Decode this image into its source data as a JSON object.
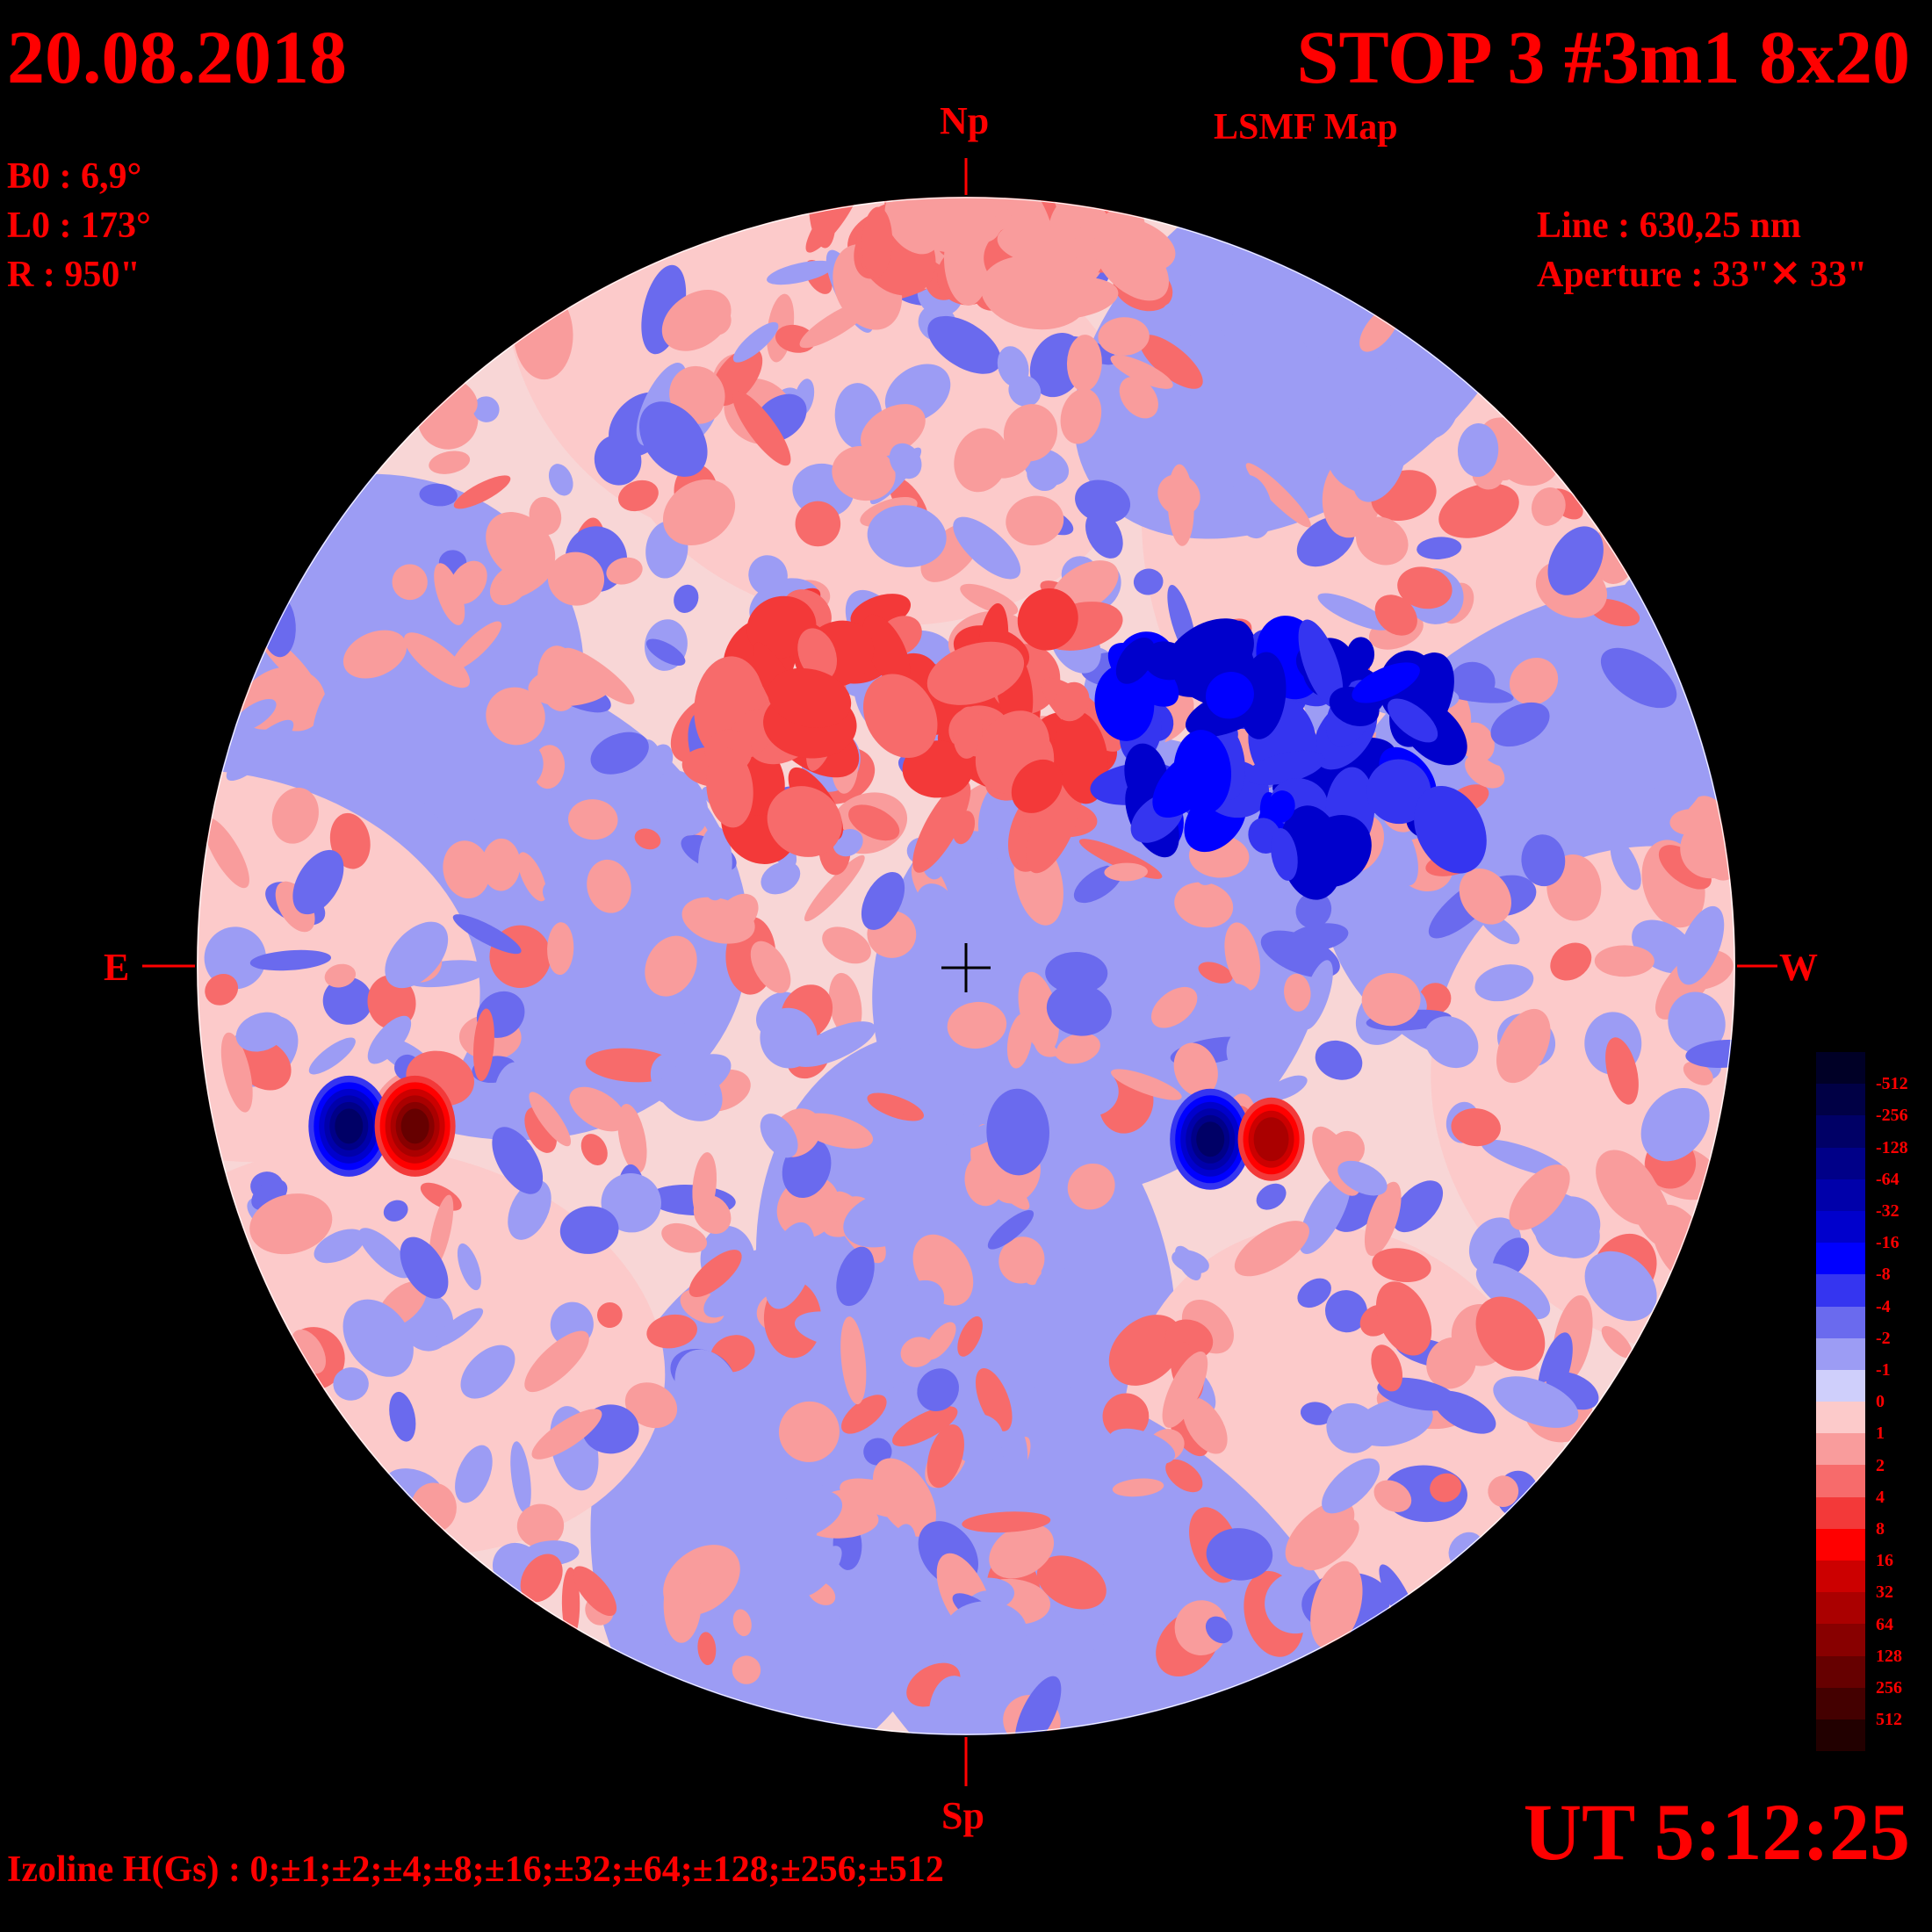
{
  "header": {
    "date": "20.08.2018",
    "title": "STOP 3 #3m1 8x20",
    "subtitle": "LSMF  Map"
  },
  "params": {
    "b0": "B0 : 6,9°",
    "l0": "L0 : 173°",
    "r": "R  : 950\"",
    "line": "Line :  630,25 nm",
    "aperture": "Aperture : 33\"✕ 33\""
  },
  "compass": {
    "north": "Np",
    "south": "Sp",
    "east": "E",
    "west": "W"
  },
  "footer": {
    "ut": "UT 5:12:25",
    "izoline": "Izoline H(Gs) : 0;±1;±2;±4;±8;±16;±32;±64;±128;±256;±512"
  },
  "colors": {
    "background": "#000000",
    "text": "#ff0000",
    "izoline": "#ffffff"
  },
  "chart_data": {
    "type": "heatmap",
    "title": "STOP 3 #3m1 8x20",
    "quantity": "H(Gs)",
    "levels": [
      0,
      1,
      2,
      4,
      8,
      16,
      32,
      64,
      128,
      256,
      512,
      -1,
      -2,
      -4,
      -8,
      -16,
      -32,
      -64,
      -128,
      -256,
      -512
    ],
    "legend": {
      "placement": "right",
      "labels": [
        "-512",
        "-256",
        "-128",
        "-64",
        "-32",
        "-16",
        "-8",
        "-4",
        "-2",
        "-1",
        "0",
        "1",
        "2",
        "4",
        "8",
        "16",
        "32",
        "64",
        "128",
        "256",
        "512"
      ],
      "colors": [
        "#000026",
        "#000045",
        "#000066",
        "#000088",
        "#0000aa",
        "#0000cc",
        "#0000ff",
        "#3535f0",
        "#6a6aee",
        "#9c9cf4",
        "#cfcffb",
        "#fccaca",
        "#f99c9c",
        "#f76b6b",
        "#f33939",
        "#ff0000",
        "#cc0000",
        "#aa0000",
        "#880000",
        "#660000",
        "#440000",
        "#220000"
      ]
    },
    "features": [
      {
        "name": "bipole-east",
        "lon": -55,
        "lat": -12,
        "polarity": "negative-leading",
        "peak_gs": -512
      },
      {
        "name": "bipole-east",
        "lon": -47,
        "lat": -12,
        "polarity": "positive",
        "peak_gs": 256
      },
      {
        "name": "bipole-west",
        "lon": 19,
        "lat": -13,
        "polarity": "negative",
        "peak_gs": -256
      },
      {
        "name": "bipole-west",
        "lon": 24,
        "lat": -13,
        "polarity": "positive",
        "peak_gs": 32
      },
      {
        "name": "north-positive-belt",
        "lon": -5,
        "lat": 20,
        "polarity": "positive",
        "peak_gs": 32
      },
      {
        "name": "northwest-negative-region",
        "lon": 25,
        "lat": 15,
        "polarity": "negative",
        "peak_gs": -64
      }
    ]
  }
}
